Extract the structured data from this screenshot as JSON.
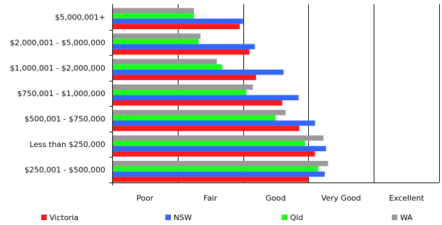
{
  "chart_data": {
    "type": "bar",
    "orientation": "horizontal",
    "categories": [
      "$5,000,001+",
      "$2,000,001 - $5,000,000",
      "$1,000,001 - $2,000,000",
      "$750,001 - $1,000,000",
      "$500,001 - $750,000",
      "Less than $250,000",
      "$250,001 - $500,000"
    ],
    "x_tick_labels": [
      "Poor",
      "Fair",
      "Good",
      "Very Good",
      "Excellent"
    ],
    "xlim": [
      0,
      5
    ],
    "grid": true,
    "legend_position": "bottom",
    "series": [
      {
        "name": "Victoria",
        "color": "#ff1a1a",
        "values": [
          1.95,
          2.1,
          2.2,
          2.6,
          2.86,
          3.1,
          3.0
        ]
      },
      {
        "name": "NSW",
        "color": "#3366ff",
        "values": [
          2.0,
          2.18,
          2.62,
          2.85,
          3.1,
          3.27,
          3.25
        ]
      },
      {
        "name": "Qld",
        "color": "#1aff1a",
        "values": [
          1.25,
          1.32,
          1.68,
          2.05,
          2.5,
          2.95,
          3.15
        ]
      },
      {
        "name": "WA",
        "color": "#999999",
        "values": [
          1.25,
          1.35,
          1.6,
          2.15,
          2.65,
          3.23,
          3.3
        ]
      }
    ]
  }
}
